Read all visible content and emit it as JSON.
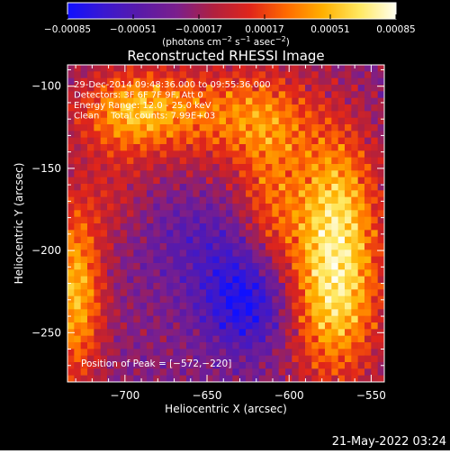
{
  "chart_data": {
    "type": "heatmap",
    "title": "Reconstructed RHESSI Image",
    "xlabel": "Heliocentric X (arcsec)",
    "ylabel": "Heliocentric Y (arcsec)",
    "xlim": [
      -735,
      -542
    ],
    "ylim": [
      -280,
      -87
    ],
    "x_ticks": [
      -700,
      -650,
      -600,
      -550
    ],
    "y_ticks": [
      -100,
      -150,
      -200,
      -250
    ],
    "x_tick_labels": [
      "−700",
      "−650",
      "−600",
      "−550"
    ],
    "y_tick_labels": [
      "−100",
      "−150",
      "−200",
      "−250"
    ],
    "colorbar": {
      "min": -0.00085,
      "max": 0.00085,
      "ticks": [
        -0.00085,
        -0.00051,
        -0.00017,
        0.00017,
        0.00051,
        0.00085
      ],
      "tick_labels": [
        "−0.00085",
        "−0.00051",
        "−0.00017",
        "0.00017",
        "0.00051",
        "0.00085"
      ],
      "units_label_main": "(photons cm",
      "units_label_exp1": "−2",
      "units_label_mid": " s",
      "units_label_exp2": "−1",
      "units_label_mid2": " asec",
      "units_label_exp3": "−2",
      "units_label_end": ")",
      "colors": [
        "#1010ff",
        "#3a18d0",
        "#5a1aa8",
        "#7b1f8c",
        "#b0203f",
        "#e0251a",
        "#ff6a00",
        "#ffb000",
        "#ffe860",
        "#fffff0"
      ]
    },
    "annotations": [
      "29-Dec-2014 09:48:36.000 to 09:55:36.000",
      "Detectors: 3F 6F 7F 9F, Att 0",
      "Energy Range: 12.0 - 25.0 keV",
      "Clean    Total counts: 7.99E+03"
    ],
    "peak_label": "Position of Peak = [−572,−220]",
    "peak": {
      "x": -572,
      "y": -220
    },
    "sources": [
      {
        "x": -573,
        "y": -225,
        "amp": 0.0009,
        "sx": 20,
        "sy": 38
      },
      {
        "x": -571,
        "y": -165,
        "amp": 0.00055,
        "sx": 18,
        "sy": 30
      },
      {
        "x": -695,
        "y": -115,
        "amp": 0.0007,
        "sx": 24,
        "sy": 18
      },
      {
        "x": -730,
        "y": -225,
        "amp": 0.00075,
        "sx": 12,
        "sy": 40
      },
      {
        "x": -628,
        "y": -118,
        "amp": 0.00055,
        "sx": 34,
        "sy": 22
      },
      {
        "x": -612,
        "y": -170,
        "amp": 0.0004,
        "sx": 14,
        "sy": 35
      },
      {
        "x": -705,
        "y": -165,
        "amp": 0.0002,
        "sx": 14,
        "sy": 20
      },
      {
        "x": -625,
        "y": -230,
        "amp": -0.0006,
        "sx": 20,
        "sy": 22
      },
      {
        "x": -655,
        "y": -195,
        "amp": -0.0002,
        "sx": 25,
        "sy": 20
      }
    ]
  },
  "footer": {
    "timestamp": "21-May-2022 03:24"
  }
}
